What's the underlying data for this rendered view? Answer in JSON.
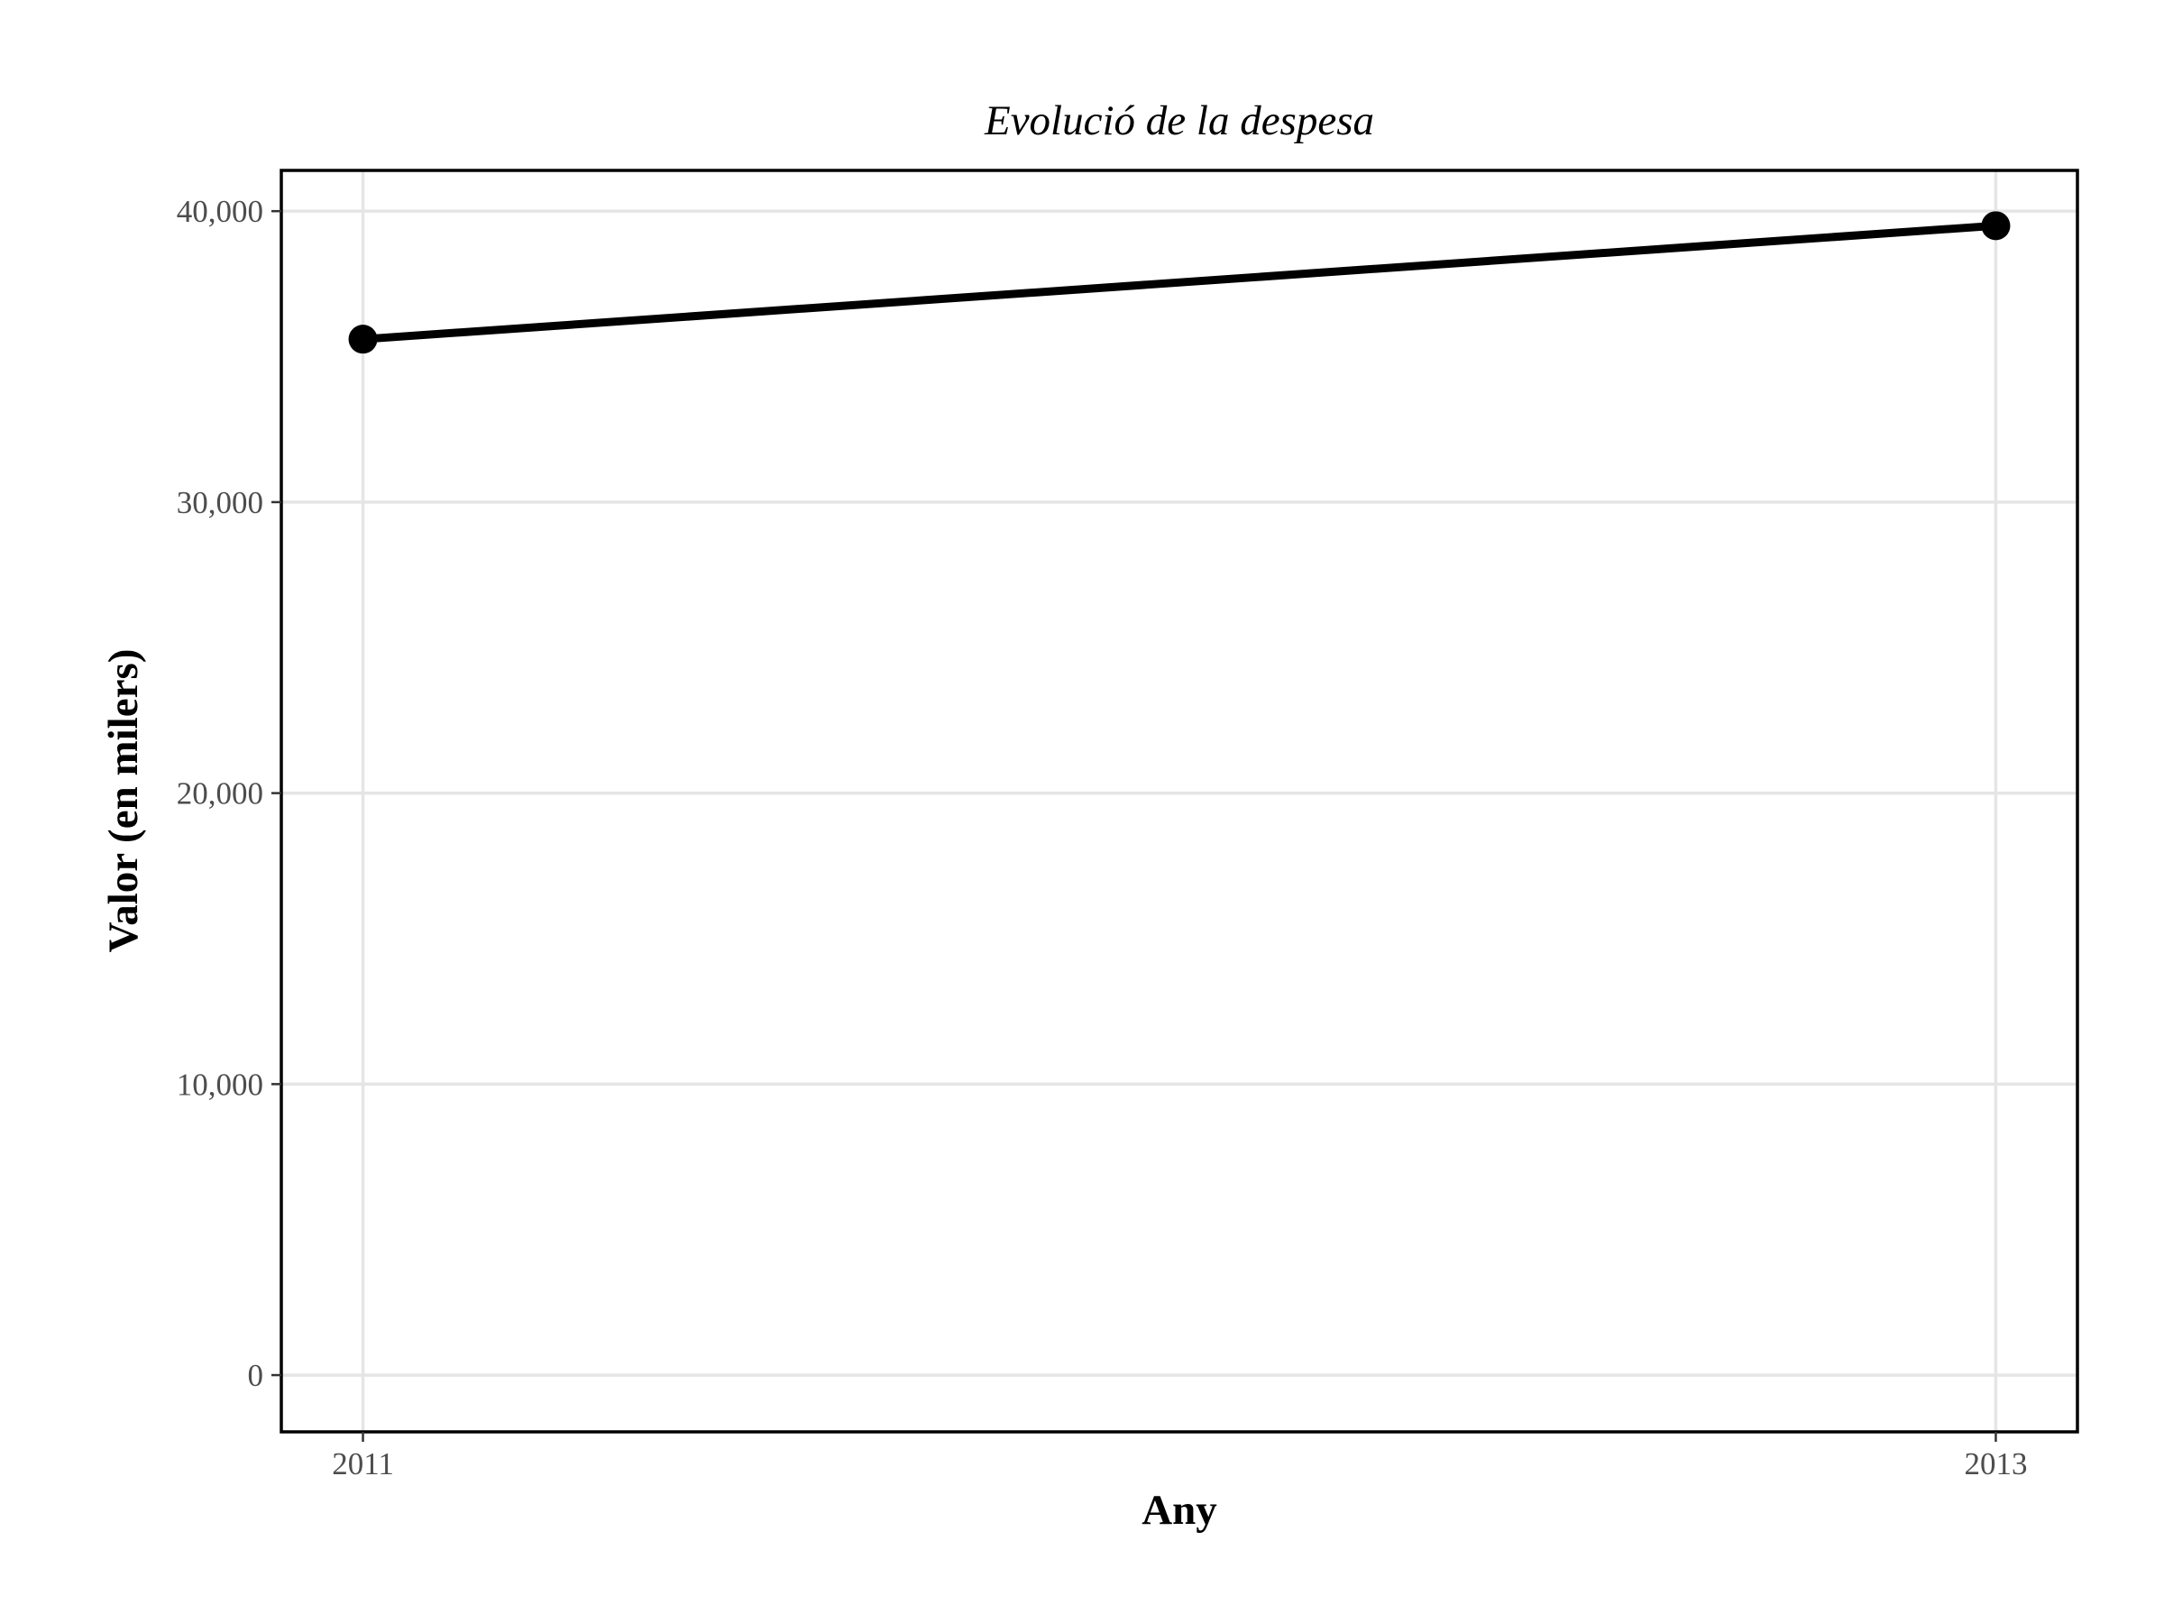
{
  "chart_data": {
    "type": "line",
    "title": "Evolució de la despesa",
    "xlabel": "Any",
    "ylabel": "Valor (en milers)",
    "x": [
      2011,
      2013
    ],
    "xticks": [
      "2011",
      "2013"
    ],
    "yticks": [
      0,
      10000,
      20000,
      30000,
      40000
    ],
    "ytick_labels": [
      "0",
      "10,000",
      "20,000",
      "30,000",
      "40,000"
    ],
    "series": [
      {
        "values": [
          35600,
          39500
        ],
        "color": "#000000"
      }
    ],
    "xlim": [
      2010.9,
      2013.1
    ],
    "ylim": [
      -1950,
      41400
    ],
    "grid": true,
    "legend": "none"
  }
}
